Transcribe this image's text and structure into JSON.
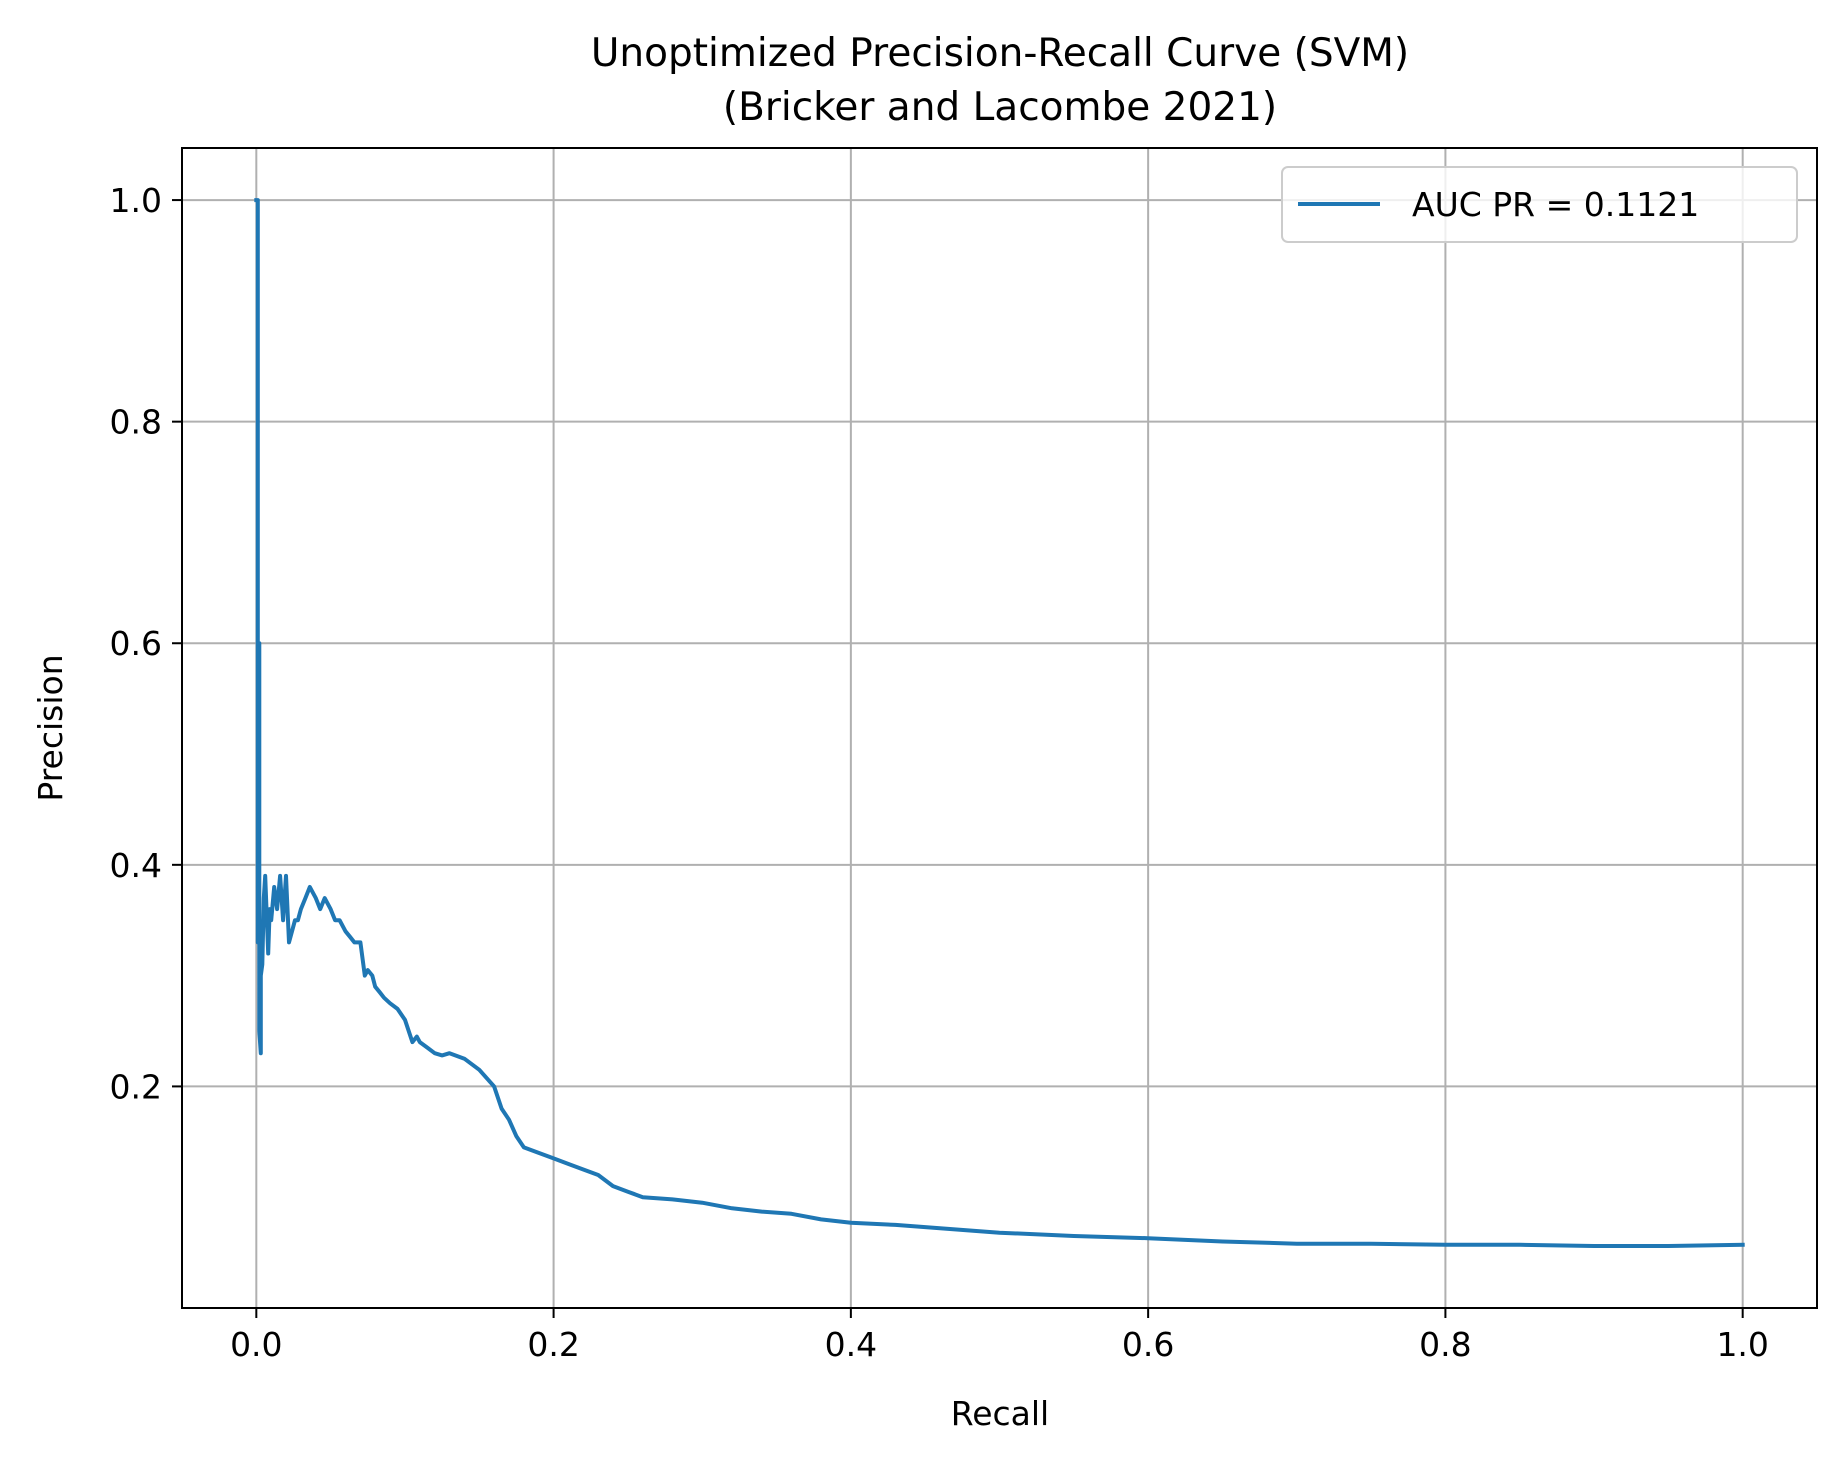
{
  "chart_data": {
    "type": "line",
    "title": "Unoptimized Precision-Recall Curve (SVM)",
    "subtitle": "(Bricker and Lacombe 2021)",
    "xlabel": "Recall",
    "ylabel": "Precision",
    "xlim": [
      -0.05,
      1.05
    ],
    "ylim": [
      0.0,
      1.047
    ],
    "xticks": [
      0.0,
      0.2,
      0.4,
      0.6,
      0.8,
      1.0
    ],
    "xtick_labels": [
      "0.0",
      "0.2",
      "0.4",
      "0.6",
      "0.8",
      "1.0"
    ],
    "yticks": [
      0.2,
      0.4,
      0.6,
      0.8,
      1.0
    ],
    "ytick_labels": [
      "0.2",
      "0.4",
      "0.6",
      "0.8",
      "1.0"
    ],
    "grid": true,
    "legend_position": "upper-right",
    "series": [
      {
        "name": "AUC PR = 0.1121",
        "color": "#1f77b4",
        "x": [
          0.0,
          0.001,
          0.001,
          0.002,
          0.002,
          0.003,
          0.003,
          0.004,
          0.005,
          0.006,
          0.008,
          0.009,
          0.01,
          0.012,
          0.014,
          0.016,
          0.018,
          0.02,
          0.022,
          0.024,
          0.026,
          0.028,
          0.03,
          0.033,
          0.036,
          0.04,
          0.043,
          0.046,
          0.05,
          0.053,
          0.056,
          0.06,
          0.063,
          0.066,
          0.07,
          0.073,
          0.075,
          0.078,
          0.08,
          0.083,
          0.086,
          0.09,
          0.095,
          0.1,
          0.105,
          0.108,
          0.11,
          0.115,
          0.12,
          0.125,
          0.13,
          0.14,
          0.15,
          0.16,
          0.165,
          0.17,
          0.175,
          0.18,
          0.19,
          0.2,
          0.21,
          0.22,
          0.23,
          0.24,
          0.25,
          0.26,
          0.28,
          0.3,
          0.32,
          0.34,
          0.36,
          0.38,
          0.4,
          0.43,
          0.46,
          0.5,
          0.55,
          0.6,
          0.65,
          0.7,
          0.75,
          0.8,
          0.85,
          0.9,
          0.95,
          1.0
        ],
        "y": [
          1.0,
          1.0,
          0.33,
          0.6,
          0.25,
          0.23,
          0.3,
          0.31,
          0.37,
          0.39,
          0.32,
          0.36,
          0.35,
          0.38,
          0.36,
          0.39,
          0.35,
          0.39,
          0.33,
          0.34,
          0.35,
          0.35,
          0.36,
          0.37,
          0.38,
          0.37,
          0.36,
          0.37,
          0.36,
          0.35,
          0.35,
          0.34,
          0.335,
          0.33,
          0.33,
          0.3,
          0.305,
          0.3,
          0.29,
          0.285,
          0.28,
          0.275,
          0.27,
          0.26,
          0.24,
          0.245,
          0.24,
          0.235,
          0.23,
          0.228,
          0.23,
          0.225,
          0.215,
          0.2,
          0.18,
          0.17,
          0.155,
          0.145,
          0.14,
          0.135,
          0.13,
          0.125,
          0.12,
          0.11,
          0.105,
          0.1,
          0.098,
          0.095,
          0.09,
          0.087,
          0.085,
          0.08,
          0.077,
          0.075,
          0.072,
          0.068,
          0.065,
          0.063,
          0.06,
          0.058,
          0.058,
          0.057,
          0.057,
          0.056,
          0.056,
          0.057
        ]
      }
    ]
  }
}
